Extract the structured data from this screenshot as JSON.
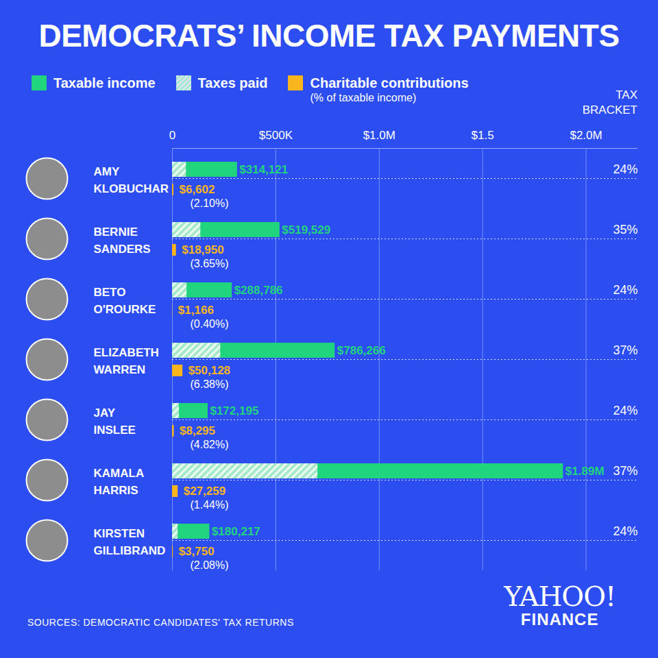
{
  "chart_data": {
    "type": "bar",
    "orientation": "horizontal",
    "title": "DEMOCRATS’ INCOME TAX PAYMENTS",
    "legend": "top",
    "legend_note": "(% of taxable income)",
    "grid": true,
    "data_labels": true,
    "categories": [
      "AMY KLOBUCHAR",
      "BERNIE SANDERS",
      "BETO O'ROURKE",
      "ELIZABETH WARREN",
      "JAY INSLEE",
      "KAMALA HARRIS",
      "KIRSTEN GILLIBRAND"
    ],
    "series": [
      {
        "name": "Taxable income",
        "color": "#21d57d",
        "values": [
          314121,
          519529,
          288786,
          786266,
          172195,
          1890000,
          180217
        ],
        "value_labels": [
          "$314,121",
          "$519,529",
          "$288,786",
          "$786,266",
          "$172,195",
          "$1.89M",
          "$180,217"
        ]
      },
      {
        "name": "Taxes paid",
        "color": "#a6e9c8",
        "values": [
          67000,
          137000,
          70000,
          233000,
          33000,
          703000,
          27000
        ]
      },
      {
        "name": "Charitable contributions",
        "color": "#f8b61c",
        "values": [
          6602,
          18950,
          1166,
          50128,
          8295,
          27259,
          3750
        ],
        "value_labels": [
          "$6,602",
          "$18,950",
          "$1,166",
          "$50,128",
          "$8,295",
          "$27,259",
          "$3,750"
        ]
      }
    ],
    "charitable_percents": [
      2.1,
      3.65,
      0.4,
      6.38,
      4.82,
      1.44,
      2.08
    ],
    "charitable_percent_labels": [
      "(2.10%)",
      "(3.65%)",
      "(0.40%)",
      "(6.38%)",
      "(4.82%)",
      "(1.44%)",
      "(2.08%)"
    ],
    "tax_bracket_title": "TAX BRACKET",
    "tax_brackets": [
      24,
      35,
      24,
      37,
      24,
      37,
      24
    ],
    "tax_bracket_labels": [
      "24%",
      "35%",
      "24%",
      "37%",
      "24%",
      "37%",
      "24%"
    ],
    "xlim": [
      0,
      2250000
    ],
    "xticks": [
      0,
      {
        "value": 500000,
        "label": "$500K"
      },
      {
        "value": 1000000,
        "label": "$1.0M"
      },
      {
        "value": 1500000,
        "label": "$1.5"
      },
      {
        "value": 2000000,
        "label": "$2.0M"
      }
    ],
    "caption": "SOURCES:  DEMOCRATIC CANDIDATES' TAX RETURNS",
    "logo": [
      "YAHOO!",
      "FINANCE"
    ]
  }
}
